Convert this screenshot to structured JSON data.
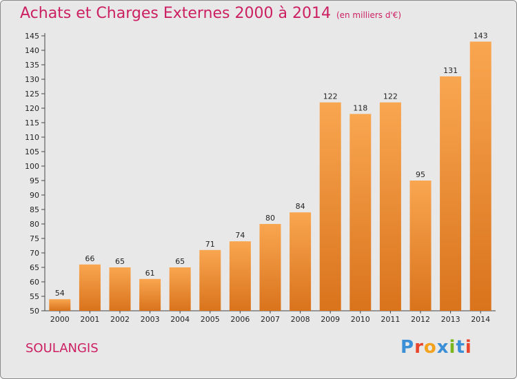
{
  "header": {
    "title": "Achats et Charges Externes 2000 à 2014",
    "subtitle": "(en milliers d'€)"
  },
  "footer": {
    "commune": "SOULANGIS",
    "logo_text": "Proxiti",
    "logo_colors": [
      "#3a8fd6",
      "#e8452c",
      "#f4a21b",
      "#3a8fd6",
      "#7ab51d",
      "#3a8fd6",
      "#e8452c"
    ]
  },
  "chart_data": {
    "type": "bar",
    "categories": [
      "2000",
      "2001",
      "2002",
      "2003",
      "2004",
      "2005",
      "2006",
      "2007",
      "2008",
      "2009",
      "2010",
      "2011",
      "2012",
      "2013",
      "2014"
    ],
    "values": [
      54,
      66,
      65,
      61,
      65,
      71,
      74,
      80,
      84,
      122,
      118,
      122,
      95,
      131,
      143
    ],
    "title": "Achats et Charges Externes 2000 à 2014",
    "subtitle": "(en milliers d'€)",
    "xlabel": "",
    "ylabel": "",
    "ylim": [
      50,
      145
    ],
    "ytick_step": 5,
    "grid": false,
    "bar_color_light": "#f9a650",
    "bar_color_dark": "#d9731c"
  }
}
